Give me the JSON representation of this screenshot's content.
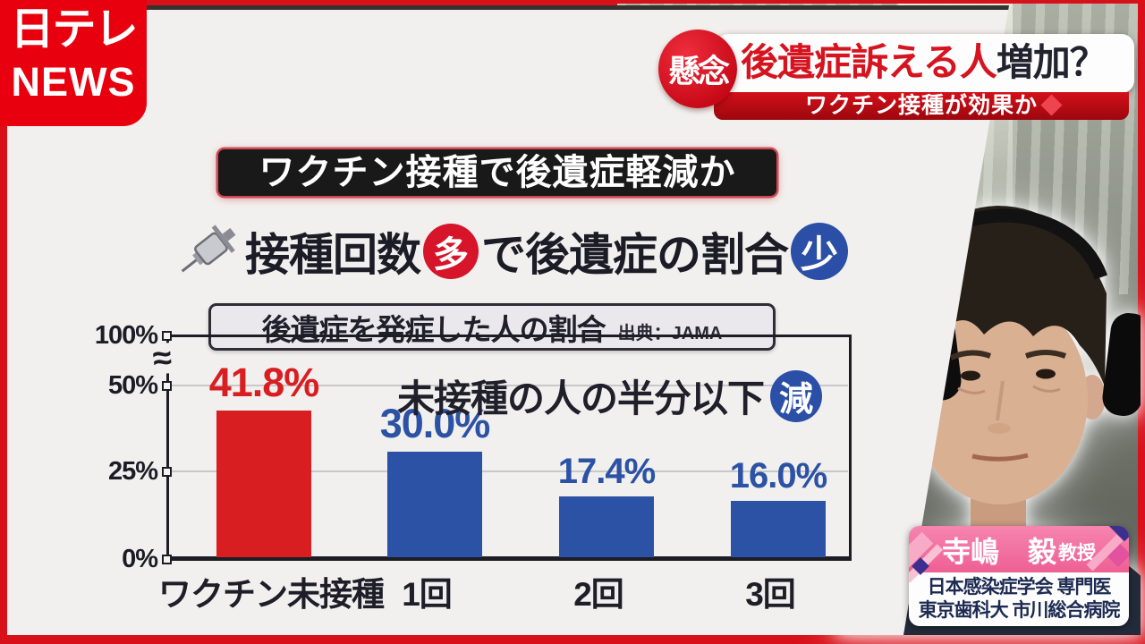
{
  "brand": {
    "logo_top": "日テレ",
    "logo_bottom": "NEWS"
  },
  "headline": {
    "badge": "懸念",
    "title_main": "後遺症訴える人",
    "title_tail": "増加？",
    "subtitle": "ワクチン接種が効果か"
  },
  "board": {
    "banner": "ワクチン接種で後遺症軽減か",
    "lead_pre": "接種回数",
    "lead_badge_more": "多",
    "lead_mid": "で後遺症の割合",
    "lead_badge_less": "少",
    "header_title": "後遺症を発症した人の割合",
    "header_source": "出典：JAMA",
    "annotation_text": "未接種の人の半分以下",
    "annotation_badge": "減"
  },
  "chart_data": {
    "type": "bar",
    "title": "後遺症を発症した人の割合",
    "source": "出典：JAMA",
    "categories": [
      "ワクチン未接種",
      "1回",
      "2回",
      "3回"
    ],
    "values": [
      41.8,
      30.0,
      17.4,
      16.0
    ],
    "value_labels": [
      "41.8%",
      "30.0%",
      "17.4%",
      "16.0%"
    ],
    "bar_colors": [
      "#d91e22",
      "#2b52a5",
      "#2b52a5",
      "#2b52a5"
    ],
    "yticks": [
      "100%",
      "50%",
      "25%",
      "0%"
    ],
    "axis_break_symbol": "≈",
    "ylim": [
      0,
      100
    ],
    "grid": "horizontal lines at 25% and 50%",
    "legend": "none",
    "annotation": "未接種の人の半分以下 減"
  },
  "speaker": {
    "name": "寺嶋　毅",
    "suffix": "教授",
    "org_line1": "日本感染症学会 専門医",
    "org_line2": "東京歯科大 市川総合病院"
  },
  "colors": {
    "brand_red": "#e8000f",
    "accent_red": "#d91e22",
    "accent_blue": "#2b52a5",
    "badge_blue": "#2b4ea6",
    "plate_pink": "#f2739f",
    "board_bg": "#f2f0ee",
    "frame_red": "#d8101a"
  }
}
